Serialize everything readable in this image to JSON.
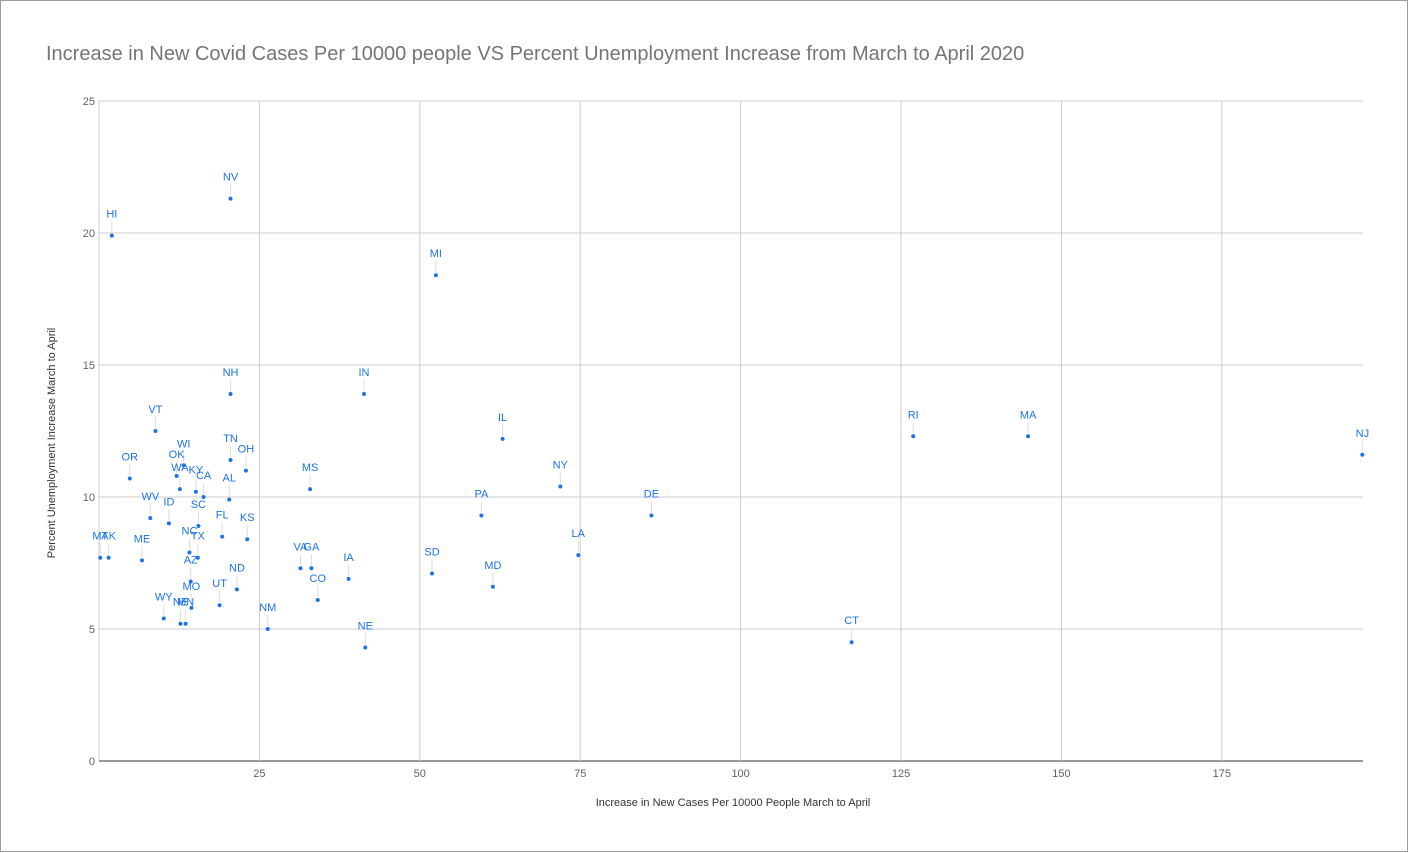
{
  "chart_data": {
    "type": "scatter",
    "title": "Increase in New Covid Cases Per 10000 people VS Percent Unemployment Increase from March to April 2020",
    "xlabel": "Increase in New Cases Per 10000 People March to April",
    "ylabel": "Percent Unemployment Increase March to April",
    "xlim": [
      0,
      197
    ],
    "ylim": [
      0,
      25
    ],
    "x_ticks": [
      25,
      50,
      75,
      100,
      125,
      150,
      175
    ],
    "y_ticks": [
      0,
      5,
      10,
      15,
      20,
      25
    ],
    "grid": true,
    "legend": "none",
    "color": "#1a73e8",
    "points": [
      {
        "label": "HI",
        "x": 2,
        "y": 19.9
      },
      {
        "label": "NV",
        "x": 20.5,
        "y": 21.3
      },
      {
        "label": "MI",
        "x": 52.5,
        "y": 18.4
      },
      {
        "label": "NH",
        "x": 20.5,
        "y": 13.9
      },
      {
        "label": "IN",
        "x": 41.3,
        "y": 13.9
      },
      {
        "label": "VT",
        "x": 8.8,
        "y": 12.5
      },
      {
        "label": "IL",
        "x": 62.9,
        "y": 12.2
      },
      {
        "label": "RI",
        "x": 126.9,
        "y": 12.3
      },
      {
        "label": "MA",
        "x": 144.8,
        "y": 12.3
      },
      {
        "label": "NJ",
        "x": 196.9,
        "y": 11.6
      },
      {
        "label": "TN",
        "x": 20.5,
        "y": 11.4
      },
      {
        "label": "OH",
        "x": 22.9,
        "y": 11.0
      },
      {
        "label": "OR",
        "x": 4.8,
        "y": 10.7
      },
      {
        "label": "OK",
        "x": 12.1,
        "y": 10.8
      },
      {
        "label": "WI",
        "x": 13.2,
        "y": 11.2
      },
      {
        "label": "WA",
        "x": 12.6,
        "y": 10.3
      },
      {
        "label": "KY",
        "x": 15.1,
        "y": 10.2
      },
      {
        "label": "CA",
        "x": 16.3,
        "y": 10.0
      },
      {
        "label": "AL",
        "x": 20.3,
        "y": 9.9
      },
      {
        "label": "MS",
        "x": 32.9,
        "y": 10.3
      },
      {
        "label": "NY",
        "x": 71.9,
        "y": 10.4
      },
      {
        "label": "PA",
        "x": 59.6,
        "y": 9.3
      },
      {
        "label": "DE",
        "x": 86.1,
        "y": 9.3
      },
      {
        "label": "WV",
        "x": 8.0,
        "y": 9.2
      },
      {
        "label": "ID",
        "x": 10.9,
        "y": 9.0
      },
      {
        "label": "SC",
        "x": 15.5,
        "y": 8.9
      },
      {
        "label": "FL",
        "x": 19.2,
        "y": 8.5
      },
      {
        "label": "KS",
        "x": 23.1,
        "y": 8.4
      },
      {
        "label": "MT",
        "x": 0.2,
        "y": 7.7
      },
      {
        "label": "AK",
        "x": 1.5,
        "y": 7.7
      },
      {
        "label": "ME",
        "x": 6.7,
        "y": 7.6
      },
      {
        "label": "NC",
        "x": 14.1,
        "y": 7.9
      },
      {
        "label": "TX",
        "x": 15.4,
        "y": 7.7
      },
      {
        "label": "VA",
        "x": 31.4,
        "y": 7.3
      },
      {
        "label": "GA",
        "x": 33.1,
        "y": 7.3
      },
      {
        "label": "LA",
        "x": 74.7,
        "y": 7.8
      },
      {
        "label": "SD",
        "x": 51.9,
        "y": 7.1
      },
      {
        "label": "IA",
        "x": 38.9,
        "y": 6.9
      },
      {
        "label": "MD",
        "x": 61.4,
        "y": 6.6
      },
      {
        "label": "AZ",
        "x": 14.3,
        "y": 6.8
      },
      {
        "label": "ND",
        "x": 21.5,
        "y": 6.5
      },
      {
        "label": "CO",
        "x": 34.1,
        "y": 6.1
      },
      {
        "label": "UT",
        "x": 18.8,
        "y": 5.9
      },
      {
        "label": "MO",
        "x": 14.4,
        "y": 5.8
      },
      {
        "label": "WY",
        "x": 10.1,
        "y": 5.4
      },
      {
        "label": "NE",
        "x": 12.7,
        "y": 5.2
      },
      {
        "label": "MN",
        "x": 13.5,
        "y": 5.2
      },
      {
        "label": "NM",
        "x": 26.3,
        "y": 5.0
      },
      {
        "label": "NE",
        "x": 41.5,
        "y": 4.3
      },
      {
        "label": "CT",
        "x": 117.3,
        "y": 4.5
      }
    ]
  }
}
